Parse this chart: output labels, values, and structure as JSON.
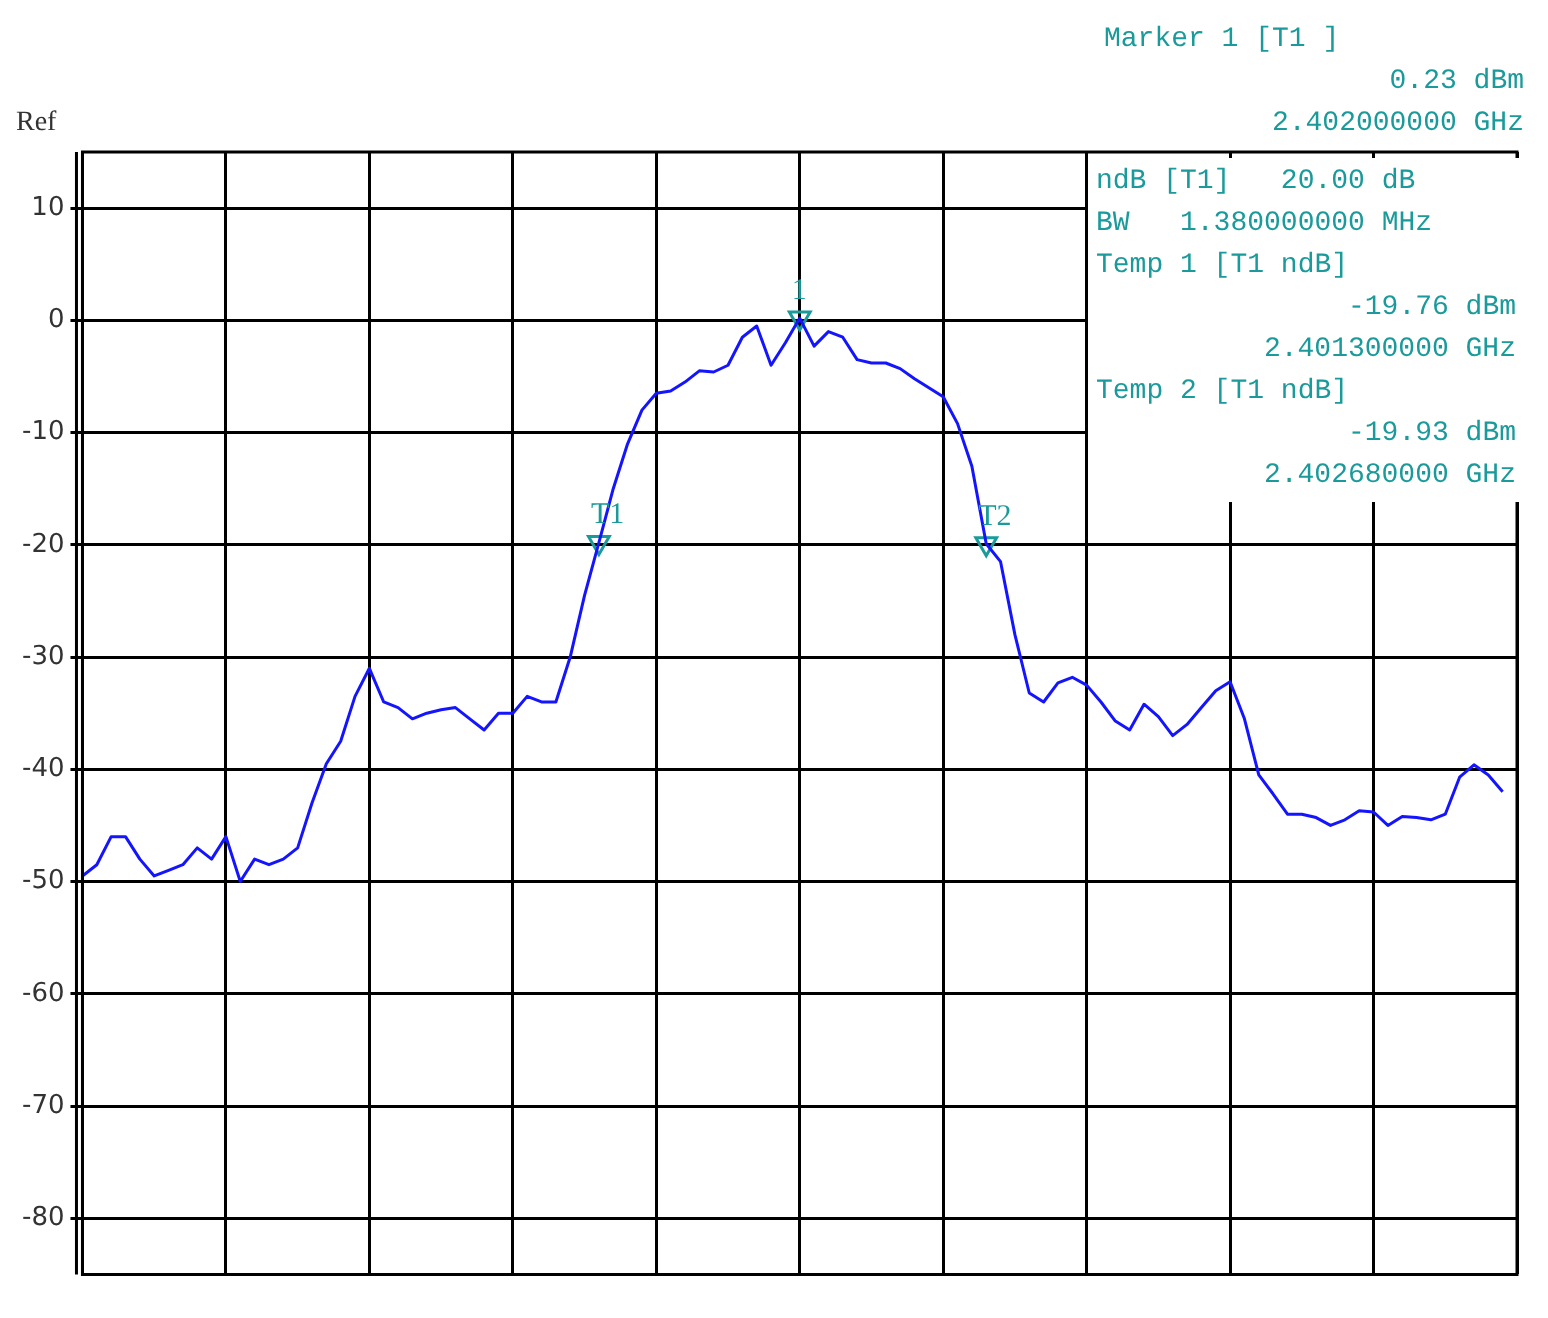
{
  "chart_data": {
    "type": "line",
    "grid": true,
    "tick_labels": "y",
    "ylim": [
      -85,
      15
    ],
    "yticks": [
      -80,
      -70,
      -60,
      -50,
      -40,
      -30,
      -20,
      -10,
      0,
      10
    ],
    "categories": [
      null,
      null,
      null,
      null,
      null,
      null,
      null,
      null,
      null,
      null,
      null,
      null,
      null,
      null,
      null,
      null,
      null,
      null,
      null,
      null,
      null,
      null,
      null,
      null,
      null,
      null,
      null,
      null,
      null,
      null,
      null,
      null,
      null,
      null,
      null,
      null,
      null,
      null,
      null,
      null,
      null,
      null,
      null,
      null,
      null,
      null,
      null,
      null,
      null,
      null,
      null,
      null,
      null,
      null,
      null,
      null,
      null,
      null,
      null,
      null,
      null,
      null,
      null,
      null,
      null,
      null,
      null,
      null,
      null,
      null,
      null,
      null,
      null,
      null,
      null,
      null,
      null,
      null,
      null,
      null,
      null,
      null,
      null,
      null,
      null,
      null,
      null,
      null,
      null,
      null,
      null,
      null,
      null,
      null,
      null,
      null,
      null,
      null,
      null,
      null,
      null
    ],
    "series": [
      {
        "color": "#1414ff",
        "marker": "none",
        "values": [
          -49.5,
          -48.5,
          -46,
          -46,
          -48,
          -49.5,
          -49,
          -48.5,
          -47,
          -48,
          -46,
          -50,
          -48,
          -48.5,
          -48,
          -47,
          -43,
          -39.5,
          -37.5,
          -33.5,
          -31,
          -34,
          -34.5,
          -35.5,
          -35,
          -34.7,
          -34.5,
          -35.5,
          -36.5,
          -35,
          -35,
          -33.5,
          -34,
          -34,
          -30,
          -24.5,
          -19.8,
          -15,
          -11,
          -8,
          -6.5,
          -6.3,
          -5.5,
          -4.5,
          -4.6,
          -4,
          -1.5,
          -0.5,
          -4,
          -2,
          0.2,
          -2.3,
          -1,
          -1.5,
          -3.5,
          -3.8,
          -3.8,
          -4.3,
          -5.2,
          -6,
          -6.8,
          -9.2,
          -13,
          -19.9,
          -21.5,
          -28,
          -33.2,
          -34,
          -32.3,
          -31.8,
          -32.5,
          -34,
          -35.7,
          -36.5,
          -34.2,
          -35.3,
          -37,
          -36,
          -34.5,
          -33,
          -32.2,
          -35.5,
          -40.5,
          -42.2,
          -44,
          -44,
          -44.3,
          -45,
          -44.5,
          -43.7,
          -43.8,
          -45,
          -44.2,
          -44.3,
          -44.5,
          -44,
          -40.7,
          -39.6,
          -40.5,
          -42,
          null
        ]
      },
      {
        "type": "scatter",
        "name": "T1",
        "color": "#1a9a9a",
        "marker": "triangle",
        "values": [
          null,
          null,
          null,
          null,
          null,
          null,
          null,
          null,
          null,
          null,
          null,
          null,
          null,
          null,
          null,
          null,
          null,
          null,
          null,
          null,
          null,
          null,
          null,
          null,
          null,
          null,
          null,
          null,
          null,
          null,
          null,
          null,
          null,
          null,
          null,
          null,
          -19.8,
          null,
          null,
          null,
          null,
          null,
          null,
          null,
          null,
          null,
          null,
          null,
          null,
          null,
          null,
          null,
          null,
          null,
          null,
          null,
          null,
          null,
          null,
          null,
          null,
          null,
          null,
          null,
          null,
          null,
          null,
          null,
          null,
          null,
          null,
          null,
          null,
          null,
          null,
          null,
          null,
          null,
          null,
          null,
          null,
          null,
          null,
          null,
          null,
          null,
          null,
          null,
          null,
          null,
          null,
          null,
          null,
          null,
          null,
          null,
          null,
          null,
          null,
          null,
          null
        ]
      },
      {
        "type": "scatter",
        "name": "1",
        "color": "#1a9a9a",
        "marker": "triangle",
        "values": [
          null,
          null,
          null,
          null,
          null,
          null,
          null,
          null,
          null,
          null,
          null,
          null,
          null,
          null,
          null,
          null,
          null,
          null,
          null,
          null,
          null,
          null,
          null,
          null,
          null,
          null,
          null,
          null,
          null,
          null,
          null,
          null,
          null,
          null,
          null,
          null,
          null,
          null,
          null,
          null,
          null,
          null,
          null,
          null,
          null,
          null,
          null,
          null,
          null,
          null,
          0.2,
          null,
          null,
          null,
          null,
          null,
          null,
          null,
          null,
          null,
          null,
          null,
          null,
          null,
          null,
          null,
          null,
          null,
          null,
          null,
          null,
          null,
          null,
          null,
          null,
          null,
          null,
          null,
          null,
          null,
          null,
          null,
          null,
          null,
          null,
          null,
          null,
          null,
          null,
          null,
          null,
          null,
          null,
          null,
          null,
          null,
          null,
          null,
          null,
          null,
          null
        ]
      },
      {
        "type": "scatter",
        "name": "T2",
        "color": "#1a9a9a",
        "marker": "triangle",
        "values": [
          null,
          null,
          null,
          null,
          null,
          null,
          null,
          null,
          null,
          null,
          null,
          null,
          null,
          null,
          null,
          null,
          null,
          null,
          null,
          null,
          null,
          null,
          null,
          null,
          null,
          null,
          null,
          null,
          null,
          null,
          null,
          null,
          null,
          null,
          null,
          null,
          null,
          null,
          null,
          null,
          null,
          null,
          null,
          null,
          null,
          null,
          null,
          null,
          null,
          null,
          null,
          null,
          null,
          null,
          null,
          null,
          null,
          null,
          null,
          null,
          null,
          null,
          null,
          -19.9,
          null,
          null,
          null,
          null,
          null,
          null,
          null,
          null,
          null,
          null,
          null,
          null,
          null,
          null,
          null,
          null,
          null,
          null,
          null,
          null,
          null,
          null,
          null,
          null,
          null,
          null,
          null,
          null,
          null,
          null,
          null,
          null,
          null,
          null,
          null,
          null,
          null
        ]
      }
    ],
    "annotations": [
      "Ref",
      "Marker 1 [T1 ]",
      "0.23 dBm",
      "2.402000000 GHz",
      "ndB [T1]   20.00 dB",
      "BW   1.380000000 MHz",
      "Temp 1 [T1 ndB]",
      "-19.76 dBm",
      "2.401300000 GHz",
      "Temp 2 [T1 ndB]",
      "-19.93 dBm",
      "2.402680000 GHz"
    ]
  }
}
